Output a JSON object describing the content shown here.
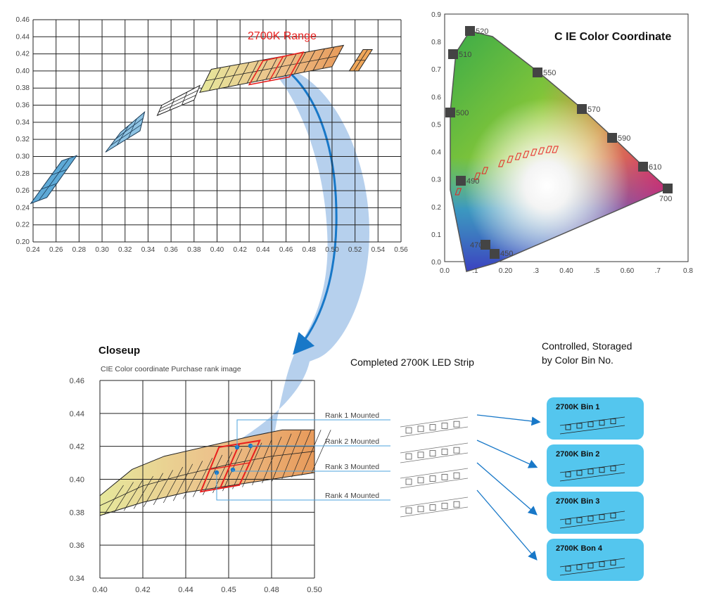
{
  "colors": {
    "accent_blue": "#1878c8",
    "range_red": "#e8201e",
    "bin_box": "#54c6ee",
    "arrow_band": "#a9c8ea",
    "grid": "#222222"
  },
  "top_chart": {
    "title": "2700K Range",
    "x_ticks": [
      "0.24",
      "0.26",
      "0.28",
      "0.30",
      "0.32",
      "0.34",
      "0.36",
      "0.38",
      "0.40",
      "0.42",
      "0.44",
      "0.46",
      "0.48",
      "0.50",
      "0.52",
      "0.54",
      "0.56"
    ],
    "y_ticks": [
      "0.46",
      "0.44",
      "0.42",
      "0.40",
      "0.38",
      "0.36",
      "0.34",
      "0.32",
      "0.30",
      "0.28",
      "0.26",
      "0.24",
      "0.22",
      "0.20"
    ]
  },
  "cie_chart": {
    "title": "C IE Color Coordinate",
    "x_ticks": [
      "0.0",
      "0.1",
      ".1",
      "0.20",
      ".3",
      "0.40",
      ".5",
      "0.60",
      ".7",
      "0.8"
    ],
    "y_ticks": [
      "0.9",
      "0.8",
      "0.7",
      "0.6",
      "0.5",
      "0.4",
      "0.3",
      "0.2",
      "0.1",
      "0.0"
    ],
    "wavelengths": [
      "520",
      "510",
      "550",
      "500",
      "570",
      "590",
      "490",
      "610",
      "700",
      "470",
      "450"
    ]
  },
  "closeup": {
    "title": "Closeup",
    "subtitle": "CIE Color coordinate Purchase rank image",
    "x_ticks": [
      "0.40",
      "0.42",
      "0.44",
      "0.45",
      "0.48",
      "0.50"
    ],
    "y_ticks": [
      "0.46",
      "0.44",
      "0.42",
      "0.40",
      "0.38",
      "0.36",
      "0.34"
    ]
  },
  "strip": {
    "title": "Completed 2700K LED Strip",
    "ranks": [
      "Rank 1 Mounted",
      "Rank 2 Mounted",
      "Rank 3 Mounted",
      "Rank 4 Mounted"
    ]
  },
  "bins": {
    "title_line1": "Controlled, Storaged",
    "title_line2": "by Color Bin No.",
    "items": [
      "2700K Bin 1",
      "2700K Bin 2",
      "2700K Bin 3",
      "2700K Bon 4"
    ]
  }
}
